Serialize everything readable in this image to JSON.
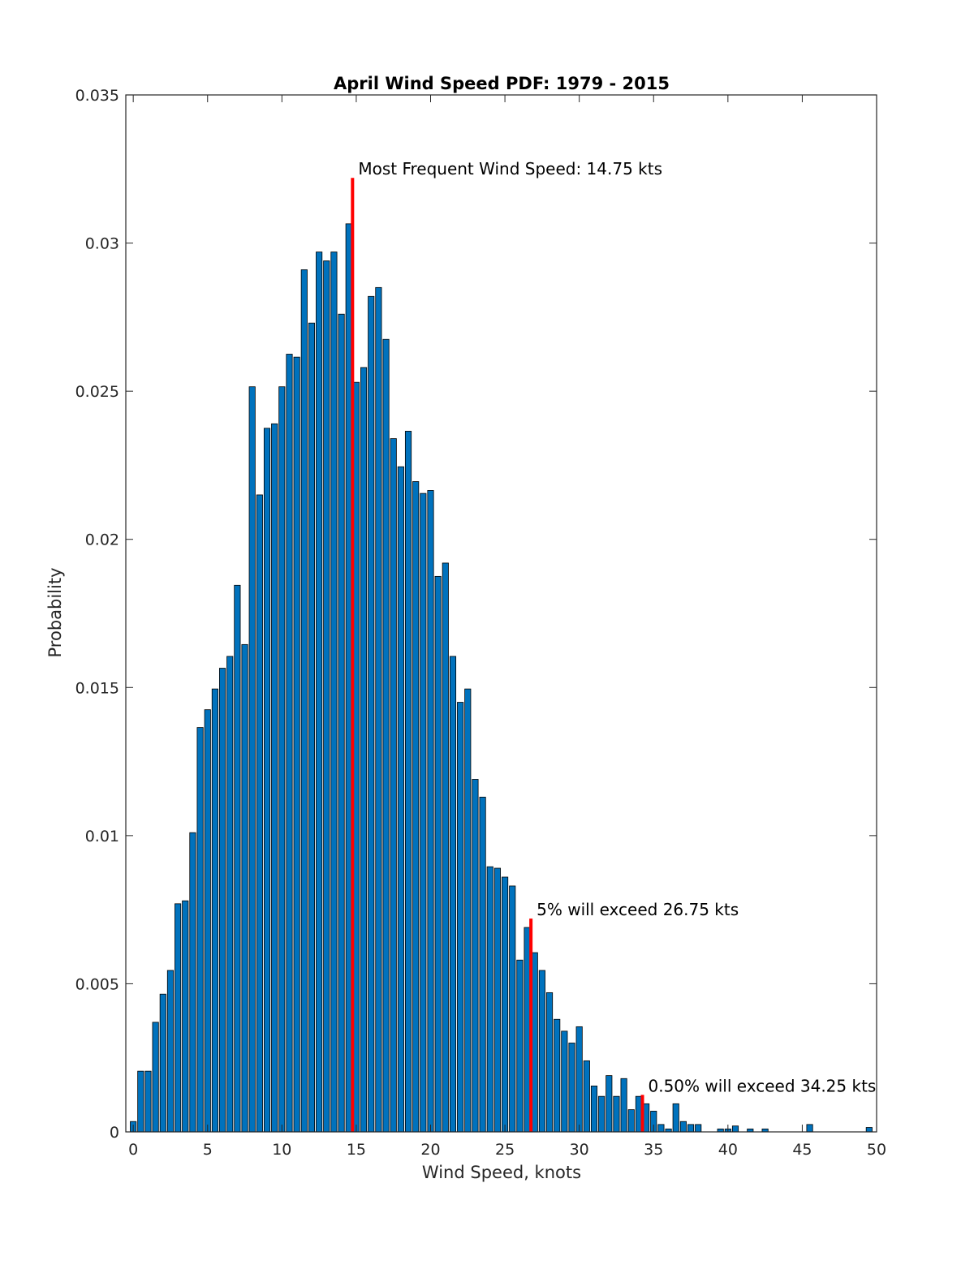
{
  "chart_data": {
    "type": "bar",
    "title": "April Wind Speed PDF: 1979 - 2015",
    "xlabel": "Wind Speed, knots",
    "ylabel": "Probability",
    "xlim": [
      -0.5,
      50
    ],
    "ylim": [
      0,
      0.035
    ],
    "xticks": [
      0,
      5,
      10,
      15,
      20,
      25,
      30,
      35,
      40,
      45,
      50
    ],
    "xtick_labels": [
      "0",
      "5",
      "10",
      "15",
      "20",
      "25",
      "30",
      "35",
      "40",
      "45",
      "50"
    ],
    "yticks": [
      0,
      0.005,
      0.01,
      0.015,
      0.02,
      0.025,
      0.03,
      0.035
    ],
    "ytick_labels": [
      "0",
      "0.005",
      "0.01",
      "0.015",
      "0.02",
      "0.025",
      "0.03",
      "0.035"
    ],
    "bin_width": 0.5,
    "bar_color": "#0072bd",
    "marker_color": "#ff0000",
    "x": [
      0,
      0.5,
      1,
      1.5,
      2,
      2.5,
      3,
      3.5,
      4,
      4.5,
      5,
      5.5,
      6,
      6.5,
      7,
      7.5,
      8,
      8.5,
      9,
      9.5,
      10,
      10.5,
      11,
      11.5,
      12,
      12.5,
      13,
      13.5,
      14,
      14.5,
      15,
      15.5,
      16,
      16.5,
      17,
      17.5,
      18,
      18.5,
      19,
      19.5,
      20,
      20.5,
      21,
      21.5,
      22,
      22.5,
      23,
      23.5,
      24,
      24.5,
      25,
      25.5,
      26,
      26.5,
      27,
      27.5,
      28,
      28.5,
      29,
      29.5,
      30,
      30.5,
      31,
      31.5,
      32,
      32.5,
      33,
      33.5,
      34,
      34.5,
      35,
      35.5,
      36,
      36.5,
      37,
      37.5,
      38,
      38.5,
      39,
      39.5,
      40,
      40.5,
      41,
      41.5,
      42,
      42.5,
      43,
      43.5,
      44,
      44.5,
      45,
      45.5,
      46,
      46.5,
      47,
      47.5,
      48,
      48.5,
      49,
      49.5
    ],
    "values": [
      0.00035,
      0.00205,
      0.00205,
      0.0037,
      0.00465,
      0.00545,
      0.0077,
      0.0078,
      0.0101,
      0.01365,
      0.01425,
      0.01495,
      0.01565,
      0.01605,
      0.01845,
      0.01645,
      0.02515,
      0.0215,
      0.02375,
      0.0239,
      0.02515,
      0.02625,
      0.02615,
      0.0291,
      0.0273,
      0.0297,
      0.0294,
      0.0297,
      0.0276,
      0.03065,
      0.0253,
      0.0258,
      0.0282,
      0.0285,
      0.02675,
      0.0234,
      0.02245,
      0.02365,
      0.02195,
      0.02155,
      0.02165,
      0.01875,
      0.0192,
      0.01605,
      0.0145,
      0.01495,
      0.0119,
      0.0113,
      0.00895,
      0.0089,
      0.0086,
      0.0083,
      0.0058,
      0.0069,
      0.00605,
      0.00545,
      0.0047,
      0.0038,
      0.0034,
      0.003,
      0.00355,
      0.0024,
      0.00155,
      0.0012,
      0.0019,
      0.0012,
      0.0018,
      0.00075,
      0.0012,
      0.00095,
      0.0007,
      0.00025,
      0.0001,
      0.00095,
      0.00035,
      0.00025,
      0.00025,
      0.0,
      0.0,
      0.0001,
      0.0001,
      0.0002,
      0.0,
      0.0001,
      0.0,
      0.0001,
      0.0,
      0.0,
      0.0,
      0.0,
      0.0,
      0.00025,
      0.0,
      0.0,
      0.0,
      0.0,
      0.0,
      0.0,
      0.0,
      0.00015
    ],
    "markers": [
      {
        "x": 14.75,
        "y": 0.0322,
        "label": "Most Frequent Wind Speed: 14.75 kts"
      },
      {
        "x": 26.75,
        "y": 0.0072,
        "label": "5% will exceed 26.75 kts"
      },
      {
        "x": 34.25,
        "y": 0.00125,
        "label": "0.50% will exceed 34.25 kts"
      }
    ],
    "grid": false,
    "legend": "none"
  }
}
